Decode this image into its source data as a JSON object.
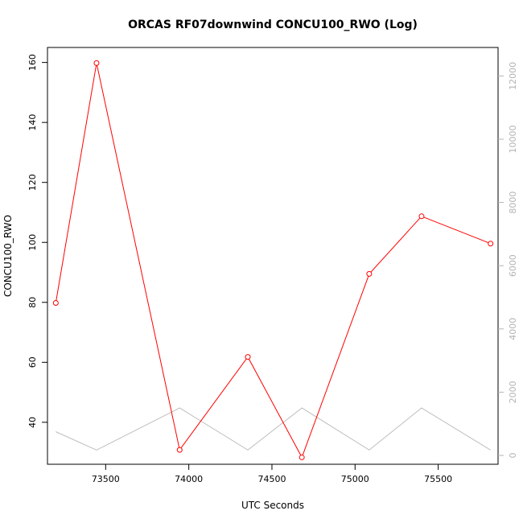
{
  "chart_data": {
    "type": "line",
    "title": "ORCAS RF07downwind CONCU100_RWO (Log)",
    "xlabel": "UTC Seconds",
    "ylabel": "CONCU100_RWO",
    "xlim": [
      73150,
      75860
    ],
    "ylim": [
      26,
      165
    ],
    "y2lim": [
      -280,
      12900
    ],
    "x_ticks": [
      73500,
      74000,
      74500,
      75000,
      75500
    ],
    "y_ticks": [
      40,
      60,
      80,
      100,
      120,
      140,
      160
    ],
    "y2_ticks": [
      0,
      2000,
      4000,
      6000,
      8000,
      10000,
      12000
    ],
    "grid": false,
    "series": [
      {
        "axis": "left",
        "color": "#ff0000",
        "marker": "open-circle",
        "x": [
          73200,
          73445,
          73945,
          74355,
          74680,
          75085,
          75400,
          75815
        ],
        "y": [
          79.8,
          159.8,
          30.8,
          61.8,
          28.3,
          89.5,
          108.7,
          99.6
        ]
      },
      {
        "axis": "right",
        "color": "#bebebe",
        "marker": "none",
        "x": [
          73200,
          73445,
          73945,
          74355,
          74680,
          75085,
          75400,
          75815
        ],
        "y": [
          750,
          170,
          1500,
          170,
          1500,
          170,
          1500,
          170
        ]
      }
    ]
  }
}
